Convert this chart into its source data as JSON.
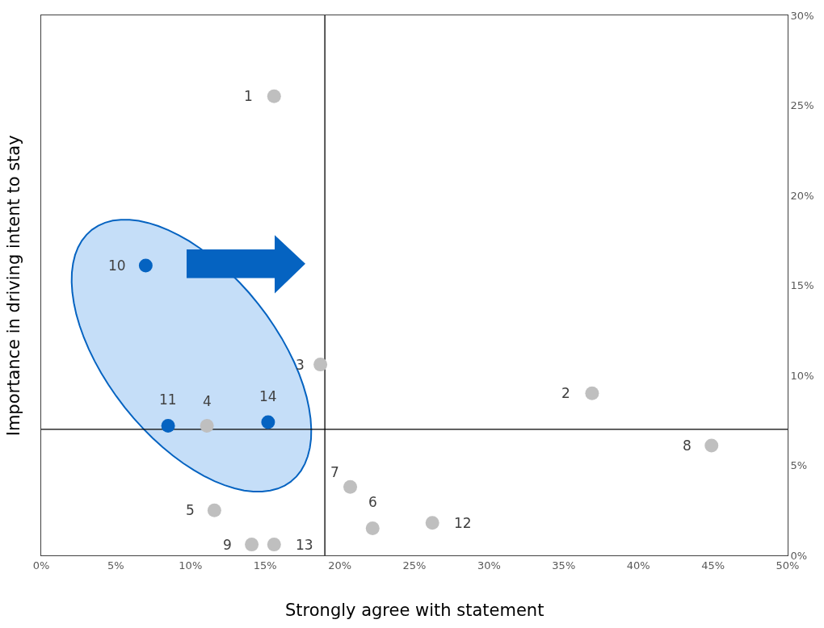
{
  "chart_data": {
    "type": "scatter",
    "xlabel": "Strongly agree with statement",
    "ylabel": "Importance in driving intent to stay",
    "series": [
      {
        "color": "#bfbfbf",
        "x": [
          15.6,
          36.9,
          18.7,
          11.1,
          11.6,
          22.2,
          20.7,
          44.9,
          14.1,
          26.2,
          15.6
        ],
        "values": [
          25.5,
          9.0,
          10.6,
          7.2,
          2.5,
          1.5,
          3.8,
          6.1,
          0.6,
          1.8,
          0.6
        ]
      },
      {
        "color": "#0563c1",
        "x": [
          7.0,
          8.5,
          15.2
        ],
        "values": [
          16.1,
          7.2,
          7.4
        ]
      }
    ],
    "annotations": [
      {
        "text": "1",
        "x": 15.6,
        "y": 25.5
      },
      {
        "text": "2",
        "x": 36.9,
        "y": 9.0
      },
      {
        "text": "3",
        "x": 18.7,
        "y": 10.6
      },
      {
        "text": "4",
        "x": 11.1,
        "y": 7.2
      },
      {
        "text": "5",
        "x": 11.6,
        "y": 2.5
      },
      {
        "text": "6",
        "x": 22.2,
        "y": 1.5
      },
      {
        "text": "7",
        "x": 20.7,
        "y": 3.8
      },
      {
        "text": "8",
        "x": 44.9,
        "y": 6.1
      },
      {
        "text": "9",
        "x": 14.1,
        "y": 0.6
      },
      {
        "text": "10",
        "x": 7.0,
        "y": 16.1
      },
      {
        "text": "11",
        "x": 8.5,
        "y": 7.2
      },
      {
        "text": "12",
        "x": 26.2,
        "y": 1.8
      },
      {
        "text": "13",
        "x": 15.6,
        "y": 0.6
      },
      {
        "text": "14",
        "x": 15.2,
        "y": 7.4
      }
    ],
    "ref_lines": [
      {
        "axis": "x",
        "value": 19.0,
        "color": "#000000"
      },
      {
        "axis": "y",
        "value": 7.0,
        "color": "#000000"
      }
    ],
    "xlim": [
      0,
      50
    ],
    "xticks": [
      {
        "value": 0,
        "label": "0%"
      },
      {
        "value": 5,
        "label": "5%"
      },
      {
        "value": 10,
        "label": "10%"
      },
      {
        "value": 15,
        "label": "15%"
      },
      {
        "value": 20,
        "label": "20%"
      },
      {
        "value": 25,
        "label": "25%"
      },
      {
        "value": 30,
        "label": "30%"
      },
      {
        "value": 35,
        "label": "35%"
      },
      {
        "value": 40,
        "label": "40%"
      },
      {
        "value": 45,
        "label": "45%"
      },
      {
        "value": 50,
        "label": "50%"
      }
    ],
    "ylim": [
      0,
      30
    ],
    "yticks": [
      {
        "value": 0,
        "label": "0%"
      },
      {
        "value": 5,
        "label": "5%"
      },
      {
        "value": 10,
        "label": "10%"
      },
      {
        "value": 15,
        "label": "15%"
      },
      {
        "value": 20,
        "label": "20%"
      },
      {
        "value": 25,
        "label": "25%"
      },
      {
        "value": 30,
        "label": "30%"
      }
    ],
    "grid": false,
    "legend": false,
    "marker": "circle"
  }
}
